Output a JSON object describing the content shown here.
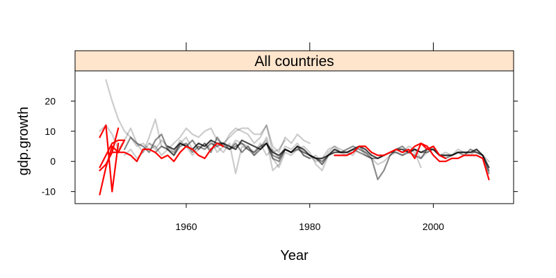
{
  "chart_data": {
    "type": "line",
    "panel_title": "All countries",
    "xlabel": "Year",
    "ylabel": "gdp.growth",
    "xlim": [
      1942,
      2013
    ],
    "ylim": [
      -14,
      30
    ],
    "x_ticks": [
      1960,
      1980,
      2000
    ],
    "y_ticks": [
      -10,
      0,
      10,
      20
    ],
    "x_tick_labels": [
      "1960",
      "1980",
      "2000"
    ],
    "y_tick_labels": [
      "-10",
      "0",
      "10",
      "20"
    ],
    "grid": false,
    "legend": "none",
    "colors": {
      "strip": "#ffe5cc",
      "highlight": "#ff0000",
      "background_series": "#000000"
    },
    "series": [
      {
        "group": "background",
        "opacity": 0.2,
        "x": [
          1947,
          1948,
          1949,
          1950,
          1951,
          1952,
          1953,
          1954,
          1955
        ],
        "y": [
          27,
          20,
          14,
          10,
          8,
          5,
          6,
          4,
          5
        ]
      },
      {
        "group": "background",
        "opacity": 0.2,
        "x": [
          1946,
          1947,
          1948,
          1949,
          1950,
          1951,
          1952,
          1953,
          1954,
          1955,
          1956,
          1957,
          1958,
          1959,
          1960,
          1961,
          1962,
          1963,
          1964,
          1965,
          1966,
          1967,
          1968,
          1969,
          1970,
          1971,
          1972,
          1973,
          1974,
          1975,
          1976,
          1977,
          1978,
          1979,
          1980
        ],
        "y": [
          10,
          12,
          9,
          4,
          7,
          11,
          6,
          3,
          8,
          14,
          5,
          4,
          6,
          8,
          11,
          9,
          8,
          10,
          11,
          7,
          6,
          8,
          10,
          11,
          11,
          9,
          9,
          12,
          5,
          3,
          8,
          6,
          9,
          7,
          6
        ]
      },
      {
        "group": "background",
        "opacity": 0.2,
        "x": [
          1950,
          1951,
          1952,
          1953,
          1954,
          1955,
          1956,
          1957,
          1958,
          1959,
          1960,
          1961,
          1962,
          1963,
          1964,
          1965,
          1966,
          1967,
          1968,
          1969,
          1970,
          1971,
          1972,
          1973,
          1974,
          1975,
          1976,
          1977,
          1978,
          1979,
          1980,
          1981,
          1982,
          1983,
          1984,
          1985,
          1986,
          1987,
          1988,
          1989,
          1990
        ],
        "y": [
          2,
          4,
          1,
          3,
          6,
          5,
          2,
          4,
          3,
          7,
          5,
          2,
          4,
          6,
          4,
          5,
          3,
          6,
          -4,
          5,
          4,
          2,
          5,
          7,
          -3,
          -1,
          4,
          3,
          5,
          2,
          1,
          2,
          -1,
          3,
          5,
          4,
          3,
          2,
          5,
          3,
          2
        ]
      },
      {
        "group": "background",
        "opacity": 0.2,
        "x": [
          1954,
          1955,
          1956,
          1957,
          1958,
          1959,
          1960,
          1961,
          1962,
          1963,
          1964,
          1965,
          1966,
          1967,
          1968,
          1969,
          1970,
          1971,
          1972,
          1973,
          1974,
          1975,
          1976,
          1977,
          1978,
          1979,
          1980,
          1981,
          1982,
          1983,
          1984,
          1985,
          1986,
          1987,
          1988,
          1989,
          1990,
          1991,
          1992,
          1993,
          1994,
          1995,
          1996,
          1997,
          1998
        ],
        "y": [
          6,
          4,
          7,
          5,
          3,
          6,
          8,
          4,
          6,
          5,
          7,
          3,
          5,
          4,
          7,
          6,
          5,
          3,
          6,
          2,
          4,
          1,
          5,
          4,
          6,
          3,
          2,
          0,
          1,
          4,
          5,
          3,
          2,
          4,
          5,
          2,
          1,
          -1,
          0,
          2,
          3,
          2,
          4,
          3,
          -2
        ]
      },
      {
        "group": "background",
        "opacity": 0.2,
        "x": [
          1966,
          1967,
          1968,
          1969,
          1970,
          1971,
          1972,
          1973,
          1974,
          1975,
          1976
        ],
        "y": [
          5,
          9,
          11,
          10,
          9,
          6,
          8,
          12,
          3,
          4,
          7
        ]
      },
      {
        "group": "background",
        "opacity": 0.2,
        "x": [
          1972,
          1973,
          1974,
          1975,
          1976,
          1977,
          1978,
          1979,
          1980,
          1981,
          1982,
          1983,
          1984,
          1985
        ],
        "y": [
          4,
          8,
          1,
          -2,
          3,
          2,
          4,
          5,
          3,
          -1,
          -3,
          2,
          4,
          3
        ]
      },
      {
        "group": "background",
        "opacity": 0.2,
        "x": [
          1993,
          1994,
          1995,
          1996,
          1997,
          1998,
          1999,
          2000,
          2001,
          2002,
          2003,
          2004,
          2005,
          2006,
          2007,
          2008,
          2009
        ],
        "y": [
          2,
          4,
          3,
          5,
          4,
          1,
          3,
          5,
          2,
          3,
          2,
          4,
          3,
          2,
          4,
          2,
          0
        ]
      },
      {
        "group": "background",
        "opacity": 0.45,
        "x": [
          1950,
          1951,
          1952,
          1953,
          1954,
          1955,
          1956,
          1957,
          1958,
          1959,
          1960,
          1961,
          1962,
          1963,
          1964,
          1965,
          1966,
          1967,
          1968,
          1969,
          1970,
          1971,
          1972,
          1973,
          1974,
          1975,
          1976,
          1977,
          1978,
          1979,
          1980
        ],
        "y": [
          4,
          8,
          6,
          5,
          3,
          7,
          9,
          4,
          2,
          6,
          5,
          7,
          4,
          6,
          3,
          8,
          5,
          4,
          6,
          3,
          5,
          2,
          4,
          6,
          1,
          0,
          4,
          3,
          5,
          2,
          1
        ]
      },
      {
        "group": "background",
        "opacity": 0.45,
        "x": [
          1980,
          1981,
          1982,
          1983,
          1984,
          1985,
          1986,
          1987,
          1988,
          1989,
          1990,
          1991,
          1992,
          1993,
          1994,
          1995,
          1996,
          1997,
          1998,
          1999,
          2000,
          2001,
          2002,
          2003,
          2004,
          2005,
          2006,
          2007,
          2008,
          2009
        ],
        "y": [
          2,
          1,
          -1,
          2,
          4,
          3,
          4,
          5,
          4,
          3,
          1,
          -6,
          -3,
          2,
          4,
          5,
          3,
          2,
          1,
          4,
          5,
          2,
          1,
          2,
          3,
          2,
          4,
          3,
          2,
          -4
        ]
      },
      {
        "group": "background",
        "opacity": 0.45,
        "x": [
          1955,
          1956,
          1957,
          1958,
          1959,
          1960,
          1961,
          1962,
          1963,
          1964,
          1965,
          1966,
          1967,
          1968,
          1969,
          1970,
          1971,
          1972,
          1973,
          1974,
          1975,
          1976,
          1977,
          1978,
          1979,
          1980,
          1981,
          1982,
          1983,
          1984,
          1985,
          1986,
          1987,
          1988,
          1989,
          1990,
          1991,
          1992,
          1993,
          1994,
          1995,
          1996,
          1997,
          1998,
          1999,
          2000,
          2001,
          2002,
          2003,
          2004,
          2005,
          2006,
          2007,
          2008,
          2009
        ],
        "y": [
          3,
          5,
          4,
          2,
          5,
          6,
          3,
          5,
          4,
          6,
          5,
          6,
          4,
          5,
          6,
          4,
          3,
          5,
          6,
          2,
          1,
          4,
          3,
          4,
          3,
          2,
          1,
          0,
          2,
          4,
          3,
          3,
          4,
          3,
          2,
          1,
          1,
          2,
          3,
          3,
          2,
          3,
          4,
          3,
          3,
          4,
          2,
          2,
          2,
          3,
          3,
          3,
          3,
          2,
          -3
        ]
      },
      {
        "group": "background",
        "opacity": 0.7,
        "x": [
          1957,
          1958,
          1959,
          1960,
          1961,
          1962,
          1963,
          1964,
          1965,
          1966,
          1967,
          1968,
          1969,
          1970,
          1971,
          1972,
          1973,
          1974,
          1975,
          1976,
          1977,
          1978,
          1979,
          1980,
          1981,
          1982,
          1983,
          1984,
          1985,
          1986,
          1987,
          1988,
          1989,
          1990,
          1991,
          1992,
          1993,
          1994,
          1995,
          1996,
          1997,
          1998,
          1999,
          2000,
          2001,
          2002,
          2003,
          2004,
          2005,
          2006,
          2007,
          2008,
          2009
        ],
        "y": [
          5,
          4,
          6,
          5,
          4,
          6,
          5,
          7,
          6,
          6,
          5,
          4,
          7,
          6,
          5,
          4,
          6,
          3,
          2,
          4,
          3,
          5,
          4,
          2,
          1,
          1,
          2,
          3,
          3,
          3,
          4,
          5,
          4,
          2,
          1,
          2,
          3,
          4,
          4,
          3,
          4,
          3,
          4,
          4,
          2,
          2,
          2,
          3,
          3,
          3,
          4,
          2,
          -2
        ]
      },
      {
        "group": "highlight",
        "x": [
          1946,
          1947,
          1948,
          1949,
          1950
        ],
        "y": [
          -11,
          -2,
          5,
          3,
          7
        ]
      },
      {
        "group": "highlight",
        "x": [
          1946,
          1947,
          1948,
          1949
        ],
        "y": [
          -3,
          -1,
          3,
          11
        ]
      },
      {
        "group": "highlight",
        "x": [
          1946,
          1947,
          1948,
          1949
        ],
        "y": [
          8,
          12,
          -10,
          6
        ]
      },
      {
        "group": "highlight",
        "x": [
          1946,
          1947,
          1948,
          1949,
          1950
        ],
        "y": [
          -2,
          2,
          6,
          7,
          7
        ]
      },
      {
        "group": "highlight",
        "x": [
          1948,
          1949,
          1950,
          1951,
          1952,
          1953,
          1954,
          1955,
          1956,
          1957,
          1958,
          1959,
          1960,
          1961,
          1962,
          1963,
          1964
        ],
        "y": [
          3,
          3,
          3,
          2,
          0,
          4,
          4,
          3,
          1,
          2,
          0,
          3,
          5,
          4,
          2,
          1,
          4
        ]
      },
      {
        "group": "highlight",
        "x": [
          1964,
          1965,
          1966
        ],
        "y": [
          4,
          6,
          5
        ]
      },
      {
        "group": "highlight",
        "x": [
          1984,
          1985,
          1986,
          1987,
          1988,
          1989,
          1990,
          1991,
          1992,
          1993,
          1994,
          1995,
          1996,
          1997,
          1998,
          1999,
          2000,
          2001,
          2002,
          2003,
          2004,
          2005,
          2006,
          2007,
          2008,
          2009
        ],
        "y": [
          2,
          2,
          2,
          3,
          5,
          5,
          3,
          2,
          2,
          3,
          4,
          3,
          4,
          1,
          6,
          5,
          2,
          0,
          0,
          1,
          1,
          2,
          2,
          2,
          1,
          -6
        ]
      },
      {
        "group": "highlight",
        "x": [
          1996,
          1997,
          1998,
          1999,
          2000,
          2001,
          2002
        ],
        "y": [
          3,
          5,
          6,
          4,
          5,
          2,
          1
        ]
      }
    ]
  }
}
